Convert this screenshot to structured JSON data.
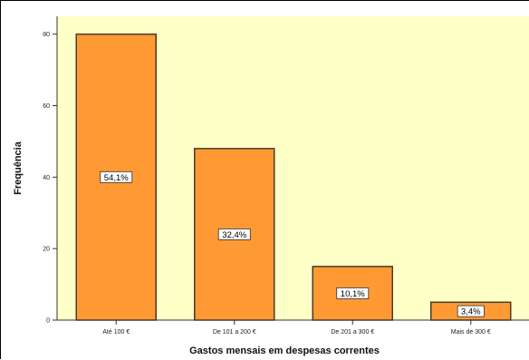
{
  "chart_data": {
    "type": "bar",
    "title": "",
    "xlabel": "Gastos mensais em despesas correntes",
    "ylabel": "Frequência",
    "categories": [
      "Até 100 €",
      "De 101 a 200 €",
      "De 201 a 300 €",
      "Mais de 300 €"
    ],
    "values": [
      80,
      48,
      15,
      5
    ],
    "data_labels": [
      "54,1%",
      "32,4%",
      "10,1%",
      "3,4%"
    ],
    "ylim": [
      0,
      85
    ],
    "yticks": [
      0,
      20,
      40,
      60,
      80
    ],
    "grid": false,
    "legend": "none",
    "colors": {
      "plot_background": "#ffffc8",
      "bar_fill": "#ff9933",
      "bar_stroke": "#4a3a28"
    }
  }
}
